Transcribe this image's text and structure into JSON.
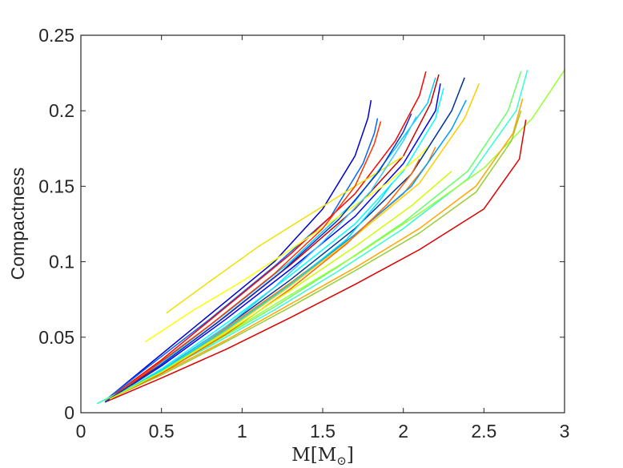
{
  "chart_data": {
    "type": "line",
    "title": "",
    "xlabel": "M[M⊙]",
    "xlabel_main": "M[M",
    "xlabel_sub": "⊙",
    "xlabel_close": "]",
    "ylabel": "Compactness",
    "xlim": [
      0,
      3
    ],
    "ylim": [
      0,
      0.25
    ],
    "xticks": [
      0,
      0.5,
      1,
      1.5,
      2,
      2.5,
      3
    ],
    "xtick_labels": [
      "0",
      "0.5",
      "1",
      "1.5",
      "2",
      "2.5",
      "3"
    ],
    "yticks": [
      0,
      0.05,
      0.1,
      0.15,
      0.2,
      0.25
    ],
    "ytick_labels": [
      "0",
      "0.05",
      "0.1",
      "0.15",
      "0.2",
      "0.25"
    ],
    "grid": false,
    "legend": "none",
    "series": [
      {
        "color": "#0000CC",
        "x": [
          0.15,
          0.4,
          0.8,
          1.2,
          1.5,
          1.7,
          1.78,
          1.8
        ],
        "y": [
          0.008,
          0.03,
          0.065,
          0.1,
          0.135,
          0.17,
          0.195,
          0.207
        ]
      },
      {
        "color": "#0066FF",
        "x": [
          0.15,
          0.4,
          0.8,
          1.2,
          1.55,
          1.75,
          1.82,
          1.84
        ],
        "y": [
          0.008,
          0.029,
          0.062,
          0.097,
          0.13,
          0.165,
          0.185,
          0.195
        ]
      },
      {
        "color": "#FF0000",
        "x": [
          0.18,
          0.5,
          0.9,
          1.3,
          1.7,
          1.95,
          2.1,
          2.14
        ],
        "y": [
          0.01,
          0.035,
          0.07,
          0.105,
          0.145,
          0.18,
          0.21,
          0.226
        ]
      },
      {
        "color": "#00CCFF",
        "x": [
          0.18,
          0.5,
          0.9,
          1.3,
          1.7,
          1.95,
          2.15,
          2.2
        ],
        "y": [
          0.01,
          0.033,
          0.066,
          0.1,
          0.14,
          0.175,
          0.205,
          0.222
        ]
      },
      {
        "color": "#CC0000",
        "x": [
          0.18,
          0.5,
          0.9,
          1.3,
          1.7,
          2.0,
          2.17,
          2.22
        ],
        "y": [
          0.01,
          0.032,
          0.064,
          0.098,
          0.135,
          0.17,
          0.205,
          0.224
        ]
      },
      {
        "color": "#0000FF",
        "x": [
          0.18,
          0.5,
          0.9,
          1.3,
          1.7,
          2.0,
          2.2,
          2.23
        ],
        "y": [
          0.009,
          0.031,
          0.062,
          0.095,
          0.13,
          0.165,
          0.2,
          0.218
        ]
      },
      {
        "color": "#00FFFF",
        "x": [
          0.18,
          0.5,
          0.9,
          1.3,
          1.7,
          2.0,
          2.2,
          2.25
        ],
        "y": [
          0.009,
          0.029,
          0.059,
          0.091,
          0.125,
          0.16,
          0.195,
          0.215
        ]
      },
      {
        "color": "#FF8000",
        "x": [
          0.2,
          0.5,
          0.9,
          1.3,
          1.7,
          2.0,
          2.15,
          2.2
        ],
        "y": [
          0.01,
          0.027,
          0.056,
          0.086,
          0.118,
          0.145,
          0.165,
          0.176
        ]
      },
      {
        "color": "#003399",
        "x": [
          0.18,
          0.5,
          0.9,
          1.3,
          1.7,
          2.05,
          2.3,
          2.38
        ],
        "y": [
          0.009,
          0.028,
          0.057,
          0.088,
          0.122,
          0.158,
          0.2,
          0.222
        ]
      },
      {
        "color": "#0099FF",
        "x": [
          0.18,
          0.5,
          0.9,
          1.3,
          1.7,
          2.05,
          2.3,
          2.39
        ],
        "y": [
          0.009,
          0.027,
          0.055,
          0.085,
          0.118,
          0.15,
          0.188,
          0.207
        ]
      },
      {
        "color": "#FFCC00",
        "x": [
          0.18,
          0.5,
          0.9,
          1.3,
          1.7,
          2.1,
          2.38,
          2.47
        ],
        "y": [
          0.009,
          0.027,
          0.054,
          0.084,
          0.117,
          0.152,
          0.195,
          0.218
        ]
      },
      {
        "color": "#FFFF00",
        "x": [
          0.4,
          0.7,
          1.0,
          1.3,
          1.6,
          1.9,
          2.1,
          2.15
        ],
        "y": [
          0.047,
          0.068,
          0.087,
          0.108,
          0.13,
          0.152,
          0.17,
          0.176
        ]
      },
      {
        "color": "#F0E000",
        "x": [
          0.53,
          0.8,
          1.1,
          1.4,
          1.7,
          1.9,
          2.0
        ],
        "y": [
          0.066,
          0.087,
          0.11,
          0.13,
          0.15,
          0.163,
          0.17
        ]
      },
      {
        "color": "#66FF66",
        "x": [
          0.1,
          0.4,
          0.8,
          1.2,
          1.6,
          2.0,
          2.4,
          2.65,
          2.73
        ],
        "y": [
          0.006,
          0.022,
          0.045,
          0.07,
          0.097,
          0.126,
          0.16,
          0.2,
          0.226
        ]
      },
      {
        "color": "#33FFCC",
        "x": [
          0.1,
          0.4,
          0.8,
          1.2,
          1.6,
          2.0,
          2.4,
          2.7,
          2.77
        ],
        "y": [
          0.006,
          0.022,
          0.044,
          0.068,
          0.094,
          0.122,
          0.155,
          0.2,
          0.227
        ]
      },
      {
        "color": "#99FF33",
        "x": [
          0.15,
          0.5,
          0.9,
          1.3,
          1.7,
          2.1,
          2.5,
          2.8,
          3.0
        ],
        "y": [
          0.008,
          0.028,
          0.052,
          0.078,
          0.104,
          0.132,
          0.162,
          0.195,
          0.227
        ]
      },
      {
        "color": "#FFA500",
        "x": [
          0.15,
          0.5,
          0.9,
          1.3,
          1.7,
          2.1,
          2.45,
          2.68,
          2.74
        ],
        "y": [
          0.008,
          0.026,
          0.048,
          0.072,
          0.096,
          0.122,
          0.15,
          0.185,
          0.208
        ]
      },
      {
        "color": "#99CC33",
        "x": [
          0.15,
          0.5,
          0.9,
          1.3,
          1.7,
          2.1,
          2.45,
          2.67,
          2.73
        ],
        "y": [
          0.008,
          0.025,
          0.047,
          0.07,
          0.094,
          0.119,
          0.146,
          0.18,
          0.2
        ]
      },
      {
        "color": "#DD0000",
        "x": [
          0.15,
          0.5,
          0.9,
          1.3,
          1.7,
          2.1,
          2.5,
          2.72,
          2.76
        ],
        "y": [
          0.007,
          0.023,
          0.042,
          0.063,
          0.085,
          0.108,
          0.135,
          0.168,
          0.194
        ]
      },
      {
        "color": "#33CCFF",
        "x": [
          0.37,
          0.6,
          0.9,
          1.2,
          1.5,
          1.8,
          2.0,
          2.08
        ],
        "y": [
          0.02,
          0.035,
          0.057,
          0.083,
          0.113,
          0.147,
          0.18,
          0.196
        ]
      },
      {
        "color": "#FF3300",
        "x": [
          0.15,
          0.4,
          0.8,
          1.2,
          1.5,
          1.7,
          1.82,
          1.86
        ],
        "y": [
          0.007,
          0.026,
          0.058,
          0.092,
          0.122,
          0.15,
          0.178,
          0.193
        ]
      },
      {
        "color": "#0033CC",
        "x": [
          0.15,
          0.45,
          0.85,
          1.25,
          1.6,
          1.85,
          2.0,
          2.05
        ],
        "y": [
          0.007,
          0.028,
          0.06,
          0.094,
          0.128,
          0.16,
          0.186,
          0.198
        ]
      },
      {
        "color": "#00DDFF",
        "x": [
          0.18,
          0.5,
          0.9,
          1.3,
          1.65,
          1.85,
          1.93
        ],
        "y": [
          0.009,
          0.028,
          0.055,
          0.085,
          0.115,
          0.14,
          0.152
        ]
      },
      {
        "color": "#FF6600",
        "x": [
          0.18,
          0.5,
          0.9,
          1.3,
          1.65,
          1.9,
          2.05,
          2.1
        ],
        "y": [
          0.009,
          0.026,
          0.052,
          0.082,
          0.112,
          0.138,
          0.158,
          0.168
        ]
      },
      {
        "color": "#CCFF00",
        "x": [
          0.18,
          0.5,
          0.9,
          1.3,
          1.7,
          2.05,
          2.3
        ],
        "y": [
          0.009,
          0.027,
          0.053,
          0.081,
          0.11,
          0.137,
          0.16
        ]
      }
    ]
  }
}
